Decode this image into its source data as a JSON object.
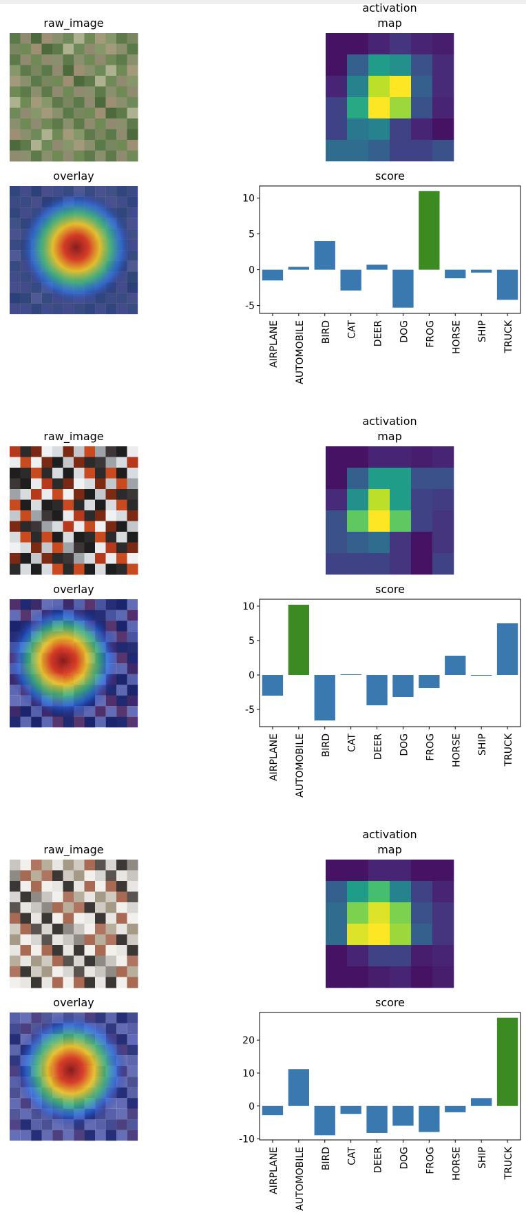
{
  "chart_data": [
    {
      "raw_title": "raw_image",
      "act_title": [
        "activation",
        "map"
      ],
      "overlay_title": "overlay",
      "score_title": "score",
      "raw_colors": [
        "#5b7a4a",
        "#6f8a55",
        "#4d6a3d",
        "#86986a",
        "#8a8f6d",
        "#7a8660",
        "#aeb190",
        "#8f8a70",
        "#a39a7c",
        "#9e8f74",
        "#5f7a4a",
        "#6d8a58"
      ],
      "activation_map": [
        [
          0.05,
          0.05,
          0.1,
          0.15,
          0.1,
          0.08
        ],
        [
          0.05,
          0.3,
          0.55,
          0.5,
          0.25,
          0.12
        ],
        [
          0.1,
          0.45,
          0.9,
          1.0,
          0.3,
          0.12
        ],
        [
          0.2,
          0.6,
          1.0,
          0.85,
          0.25,
          0.1
        ],
        [
          0.2,
          0.4,
          0.45,
          0.2,
          0.1,
          0.05
        ],
        [
          0.35,
          0.35,
          0.3,
          0.2,
          0.2,
          0.25
        ]
      ],
      "overlay_peak": [
        0.52,
        0.48
      ],
      "type": "bar",
      "categories": [
        "AIRPLANE",
        "AUTOMOBILE",
        "BIRD",
        "CAT",
        "DEER",
        "DOG",
        "FROG",
        "HORSE",
        "SHIP",
        "TRUCK"
      ],
      "values": [
        -1.5,
        0.4,
        4.0,
        -2.9,
        0.7,
        -5.3,
        11.0,
        -1.2,
        -0.4,
        -4.2
      ],
      "highlight_index": 6,
      "ylim": [
        -6.1,
        11.7
      ],
      "yticks": [
        -5,
        0,
        5,
        10
      ]
    },
    {
      "raw_title": "raw_image",
      "act_title": [
        "activation",
        "map"
      ],
      "overlay_title": "overlay",
      "score_title": "score",
      "raw_colors": [
        "#b5391a",
        "#c94a1f",
        "#7a2a14",
        "#3d3636",
        "#d9dcdf",
        "#eaeced",
        "#c4c8cc",
        "#2b2b2b",
        "#9ea3a8",
        "#f0f1f2",
        "#1e1e1e",
        "#7c2a12"
      ],
      "activation_map": [
        [
          0.05,
          0.05,
          0.1,
          0.1,
          0.08,
          0.1
        ],
        [
          0.05,
          0.3,
          0.55,
          0.55,
          0.25,
          0.25
        ],
        [
          0.12,
          0.5,
          0.9,
          0.55,
          0.2,
          0.18
        ],
        [
          0.25,
          0.75,
          1.0,
          0.75,
          0.2,
          0.15
        ],
        [
          0.25,
          0.3,
          0.35,
          0.15,
          0.05,
          0.15
        ],
        [
          0.2,
          0.2,
          0.2,
          0.15,
          0.05,
          0.2
        ]
      ],
      "overlay_peak": [
        0.42,
        0.48
      ],
      "type": "bar",
      "categories": [
        "AIRPLANE",
        "AUTOMOBILE",
        "BIRD",
        "CAT",
        "DEER",
        "DOG",
        "FROG",
        "HORSE",
        "SHIP",
        "TRUCK"
      ],
      "values": [
        -3.0,
        10.2,
        -6.6,
        0.1,
        -4.4,
        -3.2,
        -1.9,
        2.8,
        -0.1,
        7.5
      ],
      "highlight_index": 1,
      "ylim": [
        -7.5,
        11.0
      ],
      "yticks": [
        -5,
        0,
        5,
        10
      ]
    },
    {
      "raw_title": "raw_image",
      "act_title": [
        "activation",
        "map"
      ],
      "overlay_title": "overlay",
      "score_title": "score",
      "raw_colors": [
        "#c9c6c2",
        "#a86a52",
        "#b07560",
        "#d8d6d2",
        "#e8e6e2",
        "#8f8a84",
        "#cfcac2",
        "#f2f0ec",
        "#5a5450",
        "#b8ae9c",
        "#3a3734",
        "#a59a86"
      ],
      "activation_map": [
        [
          0.05,
          0.05,
          0.1,
          0.1,
          0.05,
          0.05
        ],
        [
          0.3,
          0.55,
          0.7,
          0.45,
          0.2,
          0.1
        ],
        [
          0.35,
          0.8,
          0.95,
          0.8,
          0.25,
          0.15
        ],
        [
          0.35,
          0.95,
          1.0,
          0.85,
          0.3,
          0.15
        ],
        [
          0.05,
          0.1,
          0.2,
          0.2,
          0.08,
          0.1
        ],
        [
          0.05,
          0.05,
          0.08,
          0.1,
          0.05,
          0.08
        ]
      ],
      "overlay_peak": [
        0.48,
        0.45
      ],
      "type": "bar",
      "categories": [
        "AIRPLANE",
        "AUTOMOBILE",
        "BIRD",
        "CAT",
        "DEER",
        "DOG",
        "FROG",
        "HORSE",
        "SHIP",
        "TRUCK"
      ],
      "values": [
        -2.8,
        11.2,
        -8.9,
        -2.4,
        -8.2,
        -6.0,
        -7.9,
        -1.9,
        2.4,
        26.8
      ],
      "highlight_index": 9,
      "ylim": [
        -10.3,
        28.4
      ],
      "yticks": [
        -10,
        0,
        10,
        20
      ]
    }
  ],
  "colors": {
    "bar_default": "#3a78b0",
    "bar_highlight": "#3b8a22",
    "axis": "#000000"
  }
}
